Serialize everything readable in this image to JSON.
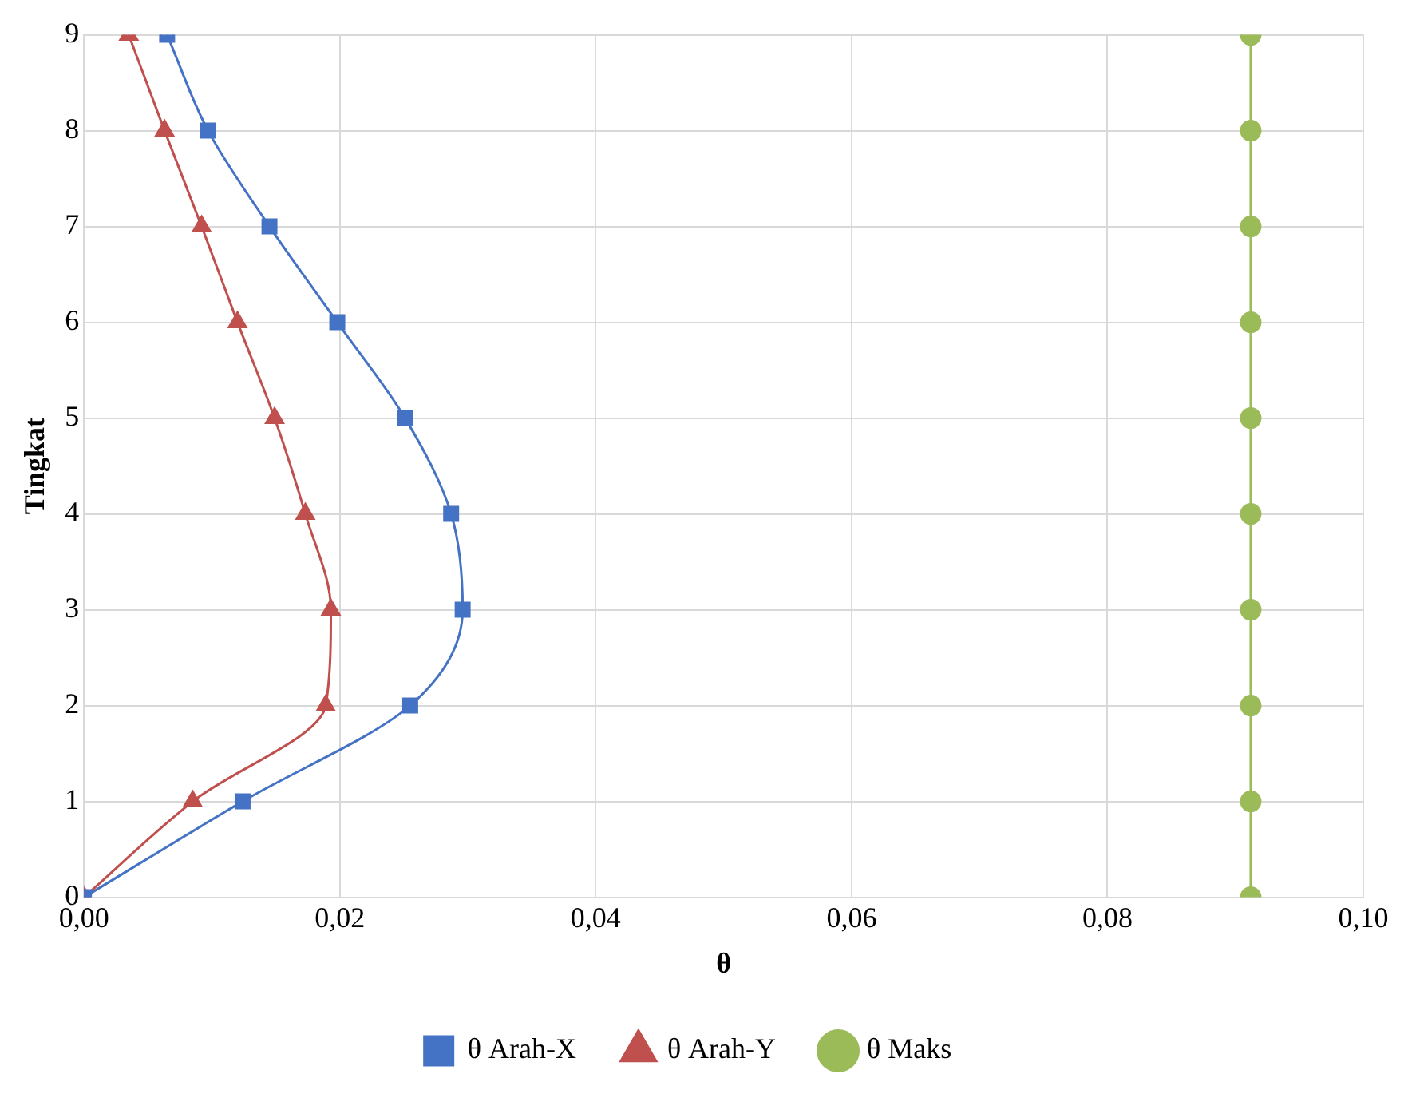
{
  "chart_data": {
    "type": "line",
    "xlabel": "θ",
    "ylabel": "Tingkat",
    "xlim": [
      0,
      0.1
    ],
    "xticks": [
      {
        "value": 0,
        "label": "0,00"
      },
      {
        "value": 0.02,
        "label": "0,02"
      },
      {
        "value": 0.04,
        "label": "0,04"
      },
      {
        "value": 0.06,
        "label": "0,06"
      },
      {
        "value": 0.08,
        "label": "0,08"
      },
      {
        "value": 0.1,
        "label": "0,10"
      }
    ],
    "ylim": [
      0,
      9
    ],
    "yticks": [
      0,
      1,
      2,
      3,
      4,
      5,
      6,
      7,
      8,
      9
    ],
    "grid": true,
    "legend": "bottom",
    "series": [
      {
        "name": "θ Arah-X",
        "color": "#4472c4",
        "marker": "square",
        "x": [
          0,
          0.0124,
          0.0255,
          0.0296,
          0.0287,
          0.0251,
          0.0198,
          0.0145,
          0.0097,
          0.0065
        ],
        "values": [
          0,
          1,
          2,
          3,
          4,
          5,
          6,
          7,
          8,
          9
        ]
      },
      {
        "name": "θ Arah-Y",
        "color": "#c0504d",
        "marker": "triangle",
        "x": [
          0,
          0.0085,
          0.0189,
          0.0193,
          0.0173,
          0.0149,
          0.012,
          0.0092,
          0.0063,
          0.0035
        ],
        "values": [
          0,
          1,
          2,
          3,
          4,
          5,
          6,
          7,
          8,
          9
        ]
      },
      {
        "name": "θ Maks",
        "color": "#9bbb59",
        "marker": "circle",
        "x": [
          0.0912,
          0.0912,
          0.0912,
          0.0912,
          0.0912,
          0.0912,
          0.0912,
          0.0912,
          0.0912,
          0.0912
        ],
        "values": [
          0,
          1,
          2,
          3,
          4,
          5,
          6,
          7,
          8,
          9
        ]
      }
    ]
  }
}
